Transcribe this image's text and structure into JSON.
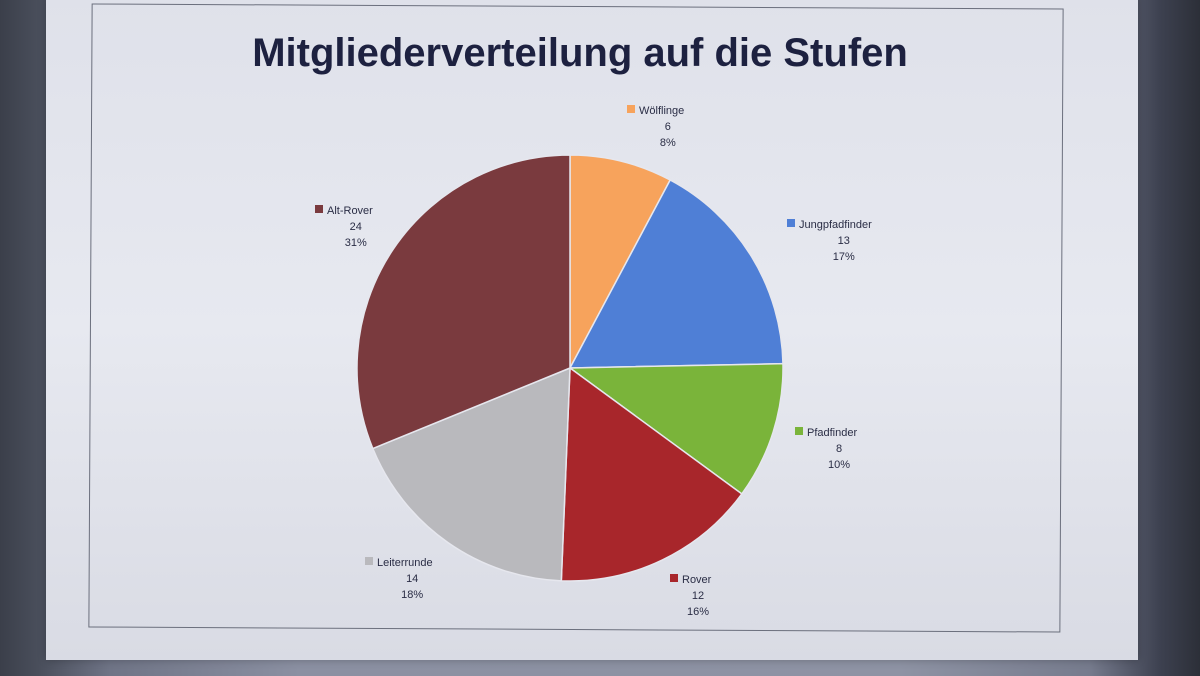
{
  "chart_data": {
    "type": "pie",
    "title": "Mitgliederverteilung auf die Stufen",
    "start_angle_deg": 0,
    "direction": "clockwise",
    "slices": [
      {
        "name": "Wölflinge",
        "value": 6,
        "percent": "8%",
        "color": "#f7a35c"
      },
      {
        "name": "Jungpfadfinder",
        "value": 13,
        "percent": "17%",
        "color": "#4f7fd6"
      },
      {
        "name": "Pfadfinder",
        "value": 8,
        "percent": "10%",
        "color": "#7ab43a"
      },
      {
        "name": "Rover",
        "value": 12,
        "percent": "16%",
        "color": "#a8262b"
      },
      {
        "name": "Leiterrunde",
        "value": 14,
        "percent": "18%",
        "color": "#b9b9bd"
      },
      {
        "name": "Alt-Rover",
        "value": 24,
        "percent": "31%",
        "color": "#7a3a3e"
      }
    ],
    "legend": "data-labels-outside"
  }
}
